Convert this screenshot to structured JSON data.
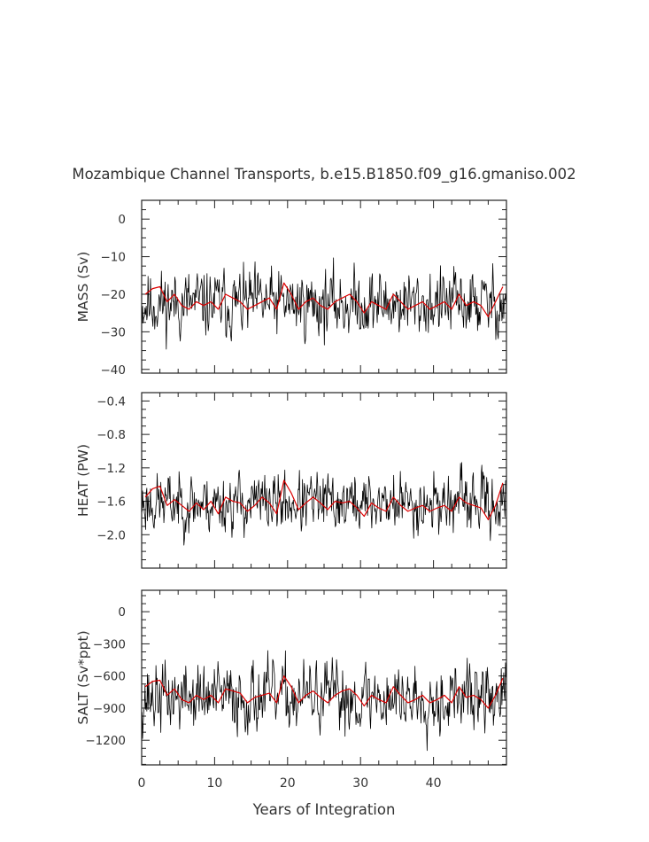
{
  "figure": {
    "title": "Mozambique Channel Transports, b.e15.B1850.f09_g16.gmaniso.002",
    "xlabel": "Years of Integration",
    "xticks": [
      0,
      10,
      20,
      30,
      40
    ],
    "xlim": [
      0,
      50
    ]
  },
  "colors": {
    "monthly": "#000000",
    "annual": "#dd0000",
    "axes": "#222222"
  },
  "chart_data": [
    {
      "type": "line",
      "ylabel": "MASS (Sv)",
      "ylim": [
        -41,
        5
      ],
      "yticks": [
        0,
        -10,
        -20,
        -30,
        -40
      ],
      "ytick_labels": [
        "0",
        "−10",
        "−20",
        "−30",
        "−40"
      ],
      "annual_mean": [
        -20,
        -18.5,
        -18,
        -22,
        -20,
        -23,
        -24,
        -22,
        -23,
        -22,
        -24,
        -20,
        -21,
        -22,
        -24,
        -23,
        -22,
        -21,
        -24,
        -17,
        -20,
        -24,
        -22,
        -21,
        -23,
        -24,
        -22,
        -21,
        -20,
        -22,
        -25,
        -22,
        -23,
        -24,
        -20,
        -22,
        -24,
        -23,
        -22,
        -24,
        -23,
        -22,
        -24,
        -20,
        -23,
        -22,
        -23,
        -26,
        -22,
        -18
      ],
      "series": [
        {
          "name": "monthly",
          "seed": 11,
          "mean": -22.5,
          "amp": 7.5,
          "clip": [
            -40.5,
            -5
          ],
          "values": []
        },
        {
          "name": "annual mean",
          "values_ref": "annual_mean"
        }
      ]
    },
    {
      "type": "line",
      "ylabel": "HEAT (PW)",
      "ylim": [
        -2.4,
        -0.3
      ],
      "yticks": [
        -0.4,
        -0.8,
        -1.2,
        -1.6,
        -2.0
      ],
      "ytick_labels": [
        "−0.4",
        "−0.8",
        "−1.2",
        "−1.6",
        "−2.0"
      ],
      "annual_mean": [
        -1.55,
        -1.45,
        -1.42,
        -1.65,
        -1.58,
        -1.65,
        -1.72,
        -1.62,
        -1.7,
        -1.6,
        -1.75,
        -1.55,
        -1.6,
        -1.62,
        -1.72,
        -1.65,
        -1.55,
        -1.62,
        -1.75,
        -1.35,
        -1.5,
        -1.7,
        -1.62,
        -1.55,
        -1.62,
        -1.7,
        -1.6,
        -1.62,
        -1.6,
        -1.68,
        -1.78,
        -1.62,
        -1.68,
        -1.72,
        -1.55,
        -1.65,
        -1.72,
        -1.68,
        -1.65,
        -1.72,
        -1.68,
        -1.65,
        -1.72,
        -1.55,
        -1.62,
        -1.65,
        -1.68,
        -1.82,
        -1.65,
        -1.38
      ],
      "series": [
        {
          "name": "monthly",
          "seed": 23,
          "mean": -1.62,
          "amp": 0.3,
          "clip": [
            -2.35,
            -0.9
          ],
          "values": []
        },
        {
          "name": "annual mean",
          "values_ref": "annual_mean"
        }
      ]
    },
    {
      "type": "line",
      "ylabel": "SALT (Sv*ppt)",
      "ylim": [
        -1430,
        200
      ],
      "yticks": [
        0,
        -300,
        -600,
        -900,
        -1200
      ],
      "ytick_labels": [
        "0",
        "−300",
        "−600",
        "−900",
        "−1200"
      ],
      "annual_mean": [
        -700,
        -650,
        -640,
        -780,
        -720,
        -820,
        -850,
        -780,
        -820,
        -780,
        -850,
        -720,
        -740,
        -760,
        -850,
        -800,
        -780,
        -760,
        -850,
        -600,
        -700,
        -850,
        -780,
        -740,
        -800,
        -850,
        -780,
        -740,
        -720,
        -780,
        -880,
        -780,
        -820,
        -850,
        -700,
        -780,
        -850,
        -820,
        -780,
        -850,
        -820,
        -780,
        -850,
        -700,
        -800,
        -780,
        -820,
        -900,
        -780,
        -620
      ],
      "series": [
        {
          "name": "monthly",
          "seed": 37,
          "mean": -800,
          "amp": 270,
          "clip": [
            -1400,
            -200
          ],
          "values": []
        },
        {
          "name": "annual mean",
          "values_ref": "annual_mean"
        }
      ]
    }
  ]
}
